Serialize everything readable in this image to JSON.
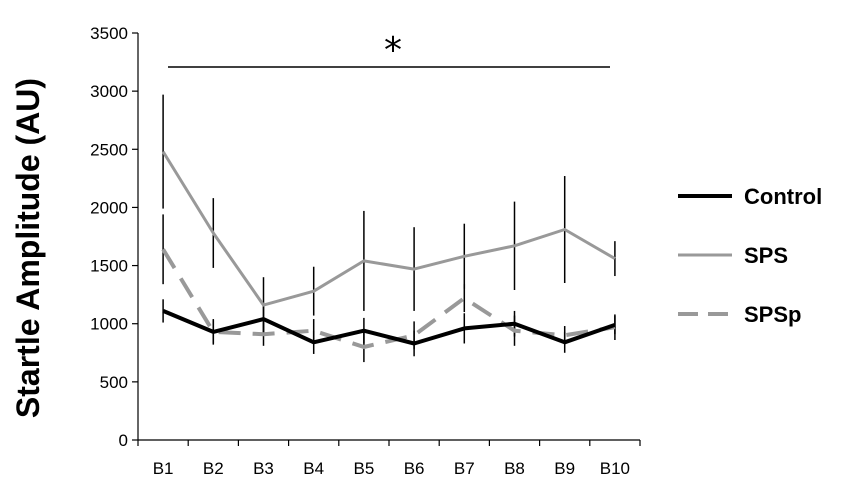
{
  "chart_data": {
    "type": "line",
    "ylabel": "Startle Amplitude (AU)",
    "xlabel": "",
    "categories": [
      "B1",
      "B2",
      "B3",
      "B4",
      "B5",
      "B6",
      "B7",
      "B8",
      "B9",
      "B10"
    ],
    "ylim": [
      0,
      3500
    ],
    "yticks": [
      0,
      500,
      1000,
      1500,
      2000,
      2500,
      3000,
      3500
    ],
    "grid": false,
    "legend_position": "right",
    "significance_marker": "*",
    "significance_span": [
      "B1",
      "B10"
    ],
    "series": [
      {
        "name": "Control",
        "style": "solid",
        "color": "#000000",
        "values": [
          1110,
          930,
          1040,
          840,
          940,
          830,
          960,
          1000,
          840,
          990
        ],
        "error": [
          100,
          110,
          120,
          100,
          110,
          110,
          130,
          110,
          90,
          80
        ]
      },
      {
        "name": "SPS",
        "style": "solid",
        "color": "#999999",
        "values": [
          2480,
          1780,
          1160,
          1280,
          1540,
          1470,
          1580,
          1670,
          1810,
          1560
        ],
        "error": [
          490,
          300,
          240,
          210,
          430,
          360,
          280,
          380,
          460,
          150
        ]
      },
      {
        "name": "SPSp",
        "style": "dashed",
        "color": "#999999",
        "values": [
          1640,
          930,
          910,
          940,
          800,
          900,
          1220,
          940,
          900,
          970
        ],
        "error": [
          300,
          100,
          100,
          100,
          130,
          120,
          120,
          130,
          80,
          110
        ]
      }
    ]
  }
}
